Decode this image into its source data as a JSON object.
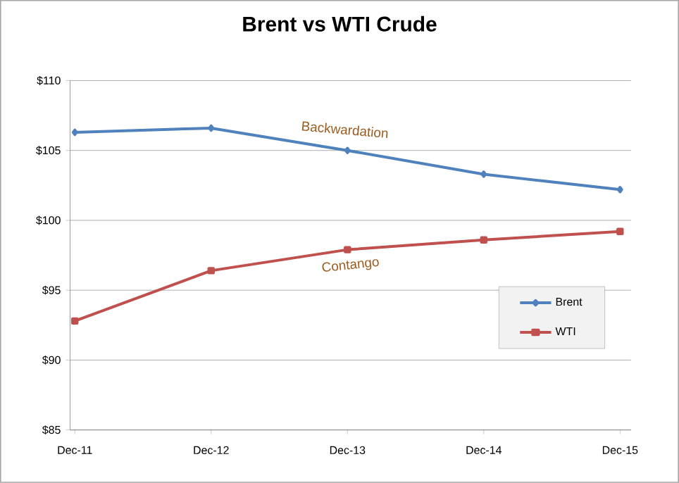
{
  "chart_data": {
    "type": "line",
    "title": "Brent vs WTI Crude",
    "categories": [
      "Dec-11",
      "Dec-12",
      "Dec-13",
      "Dec-14",
      "Dec-15"
    ],
    "series": [
      {
        "name": "Brent",
        "color": "#4f81bd",
        "marker": "diamond",
        "values": [
          106.3,
          106.6,
          105.0,
          103.3,
          102.2
        ]
      },
      {
        "name": "WTI",
        "color": "#c0504d",
        "marker": "square",
        "values": [
          92.8,
          96.4,
          97.9,
          98.6,
          99.2
        ]
      }
    ],
    "ylim": [
      85,
      110
    ],
    "yticks": [
      {
        "value": 85,
        "label": "$85"
      },
      {
        "value": 90,
        "label": "$90"
      },
      {
        "value": 95,
        "label": "$95"
      },
      {
        "value": 100,
        "label": "$100"
      },
      {
        "value": 105,
        "label": "$105"
      },
      {
        "value": 110,
        "label": "$110"
      }
    ],
    "grid": "y",
    "legend": "right",
    "line_style": "solid",
    "annotations": [
      "Backwardation",
      "Contango"
    ]
  }
}
